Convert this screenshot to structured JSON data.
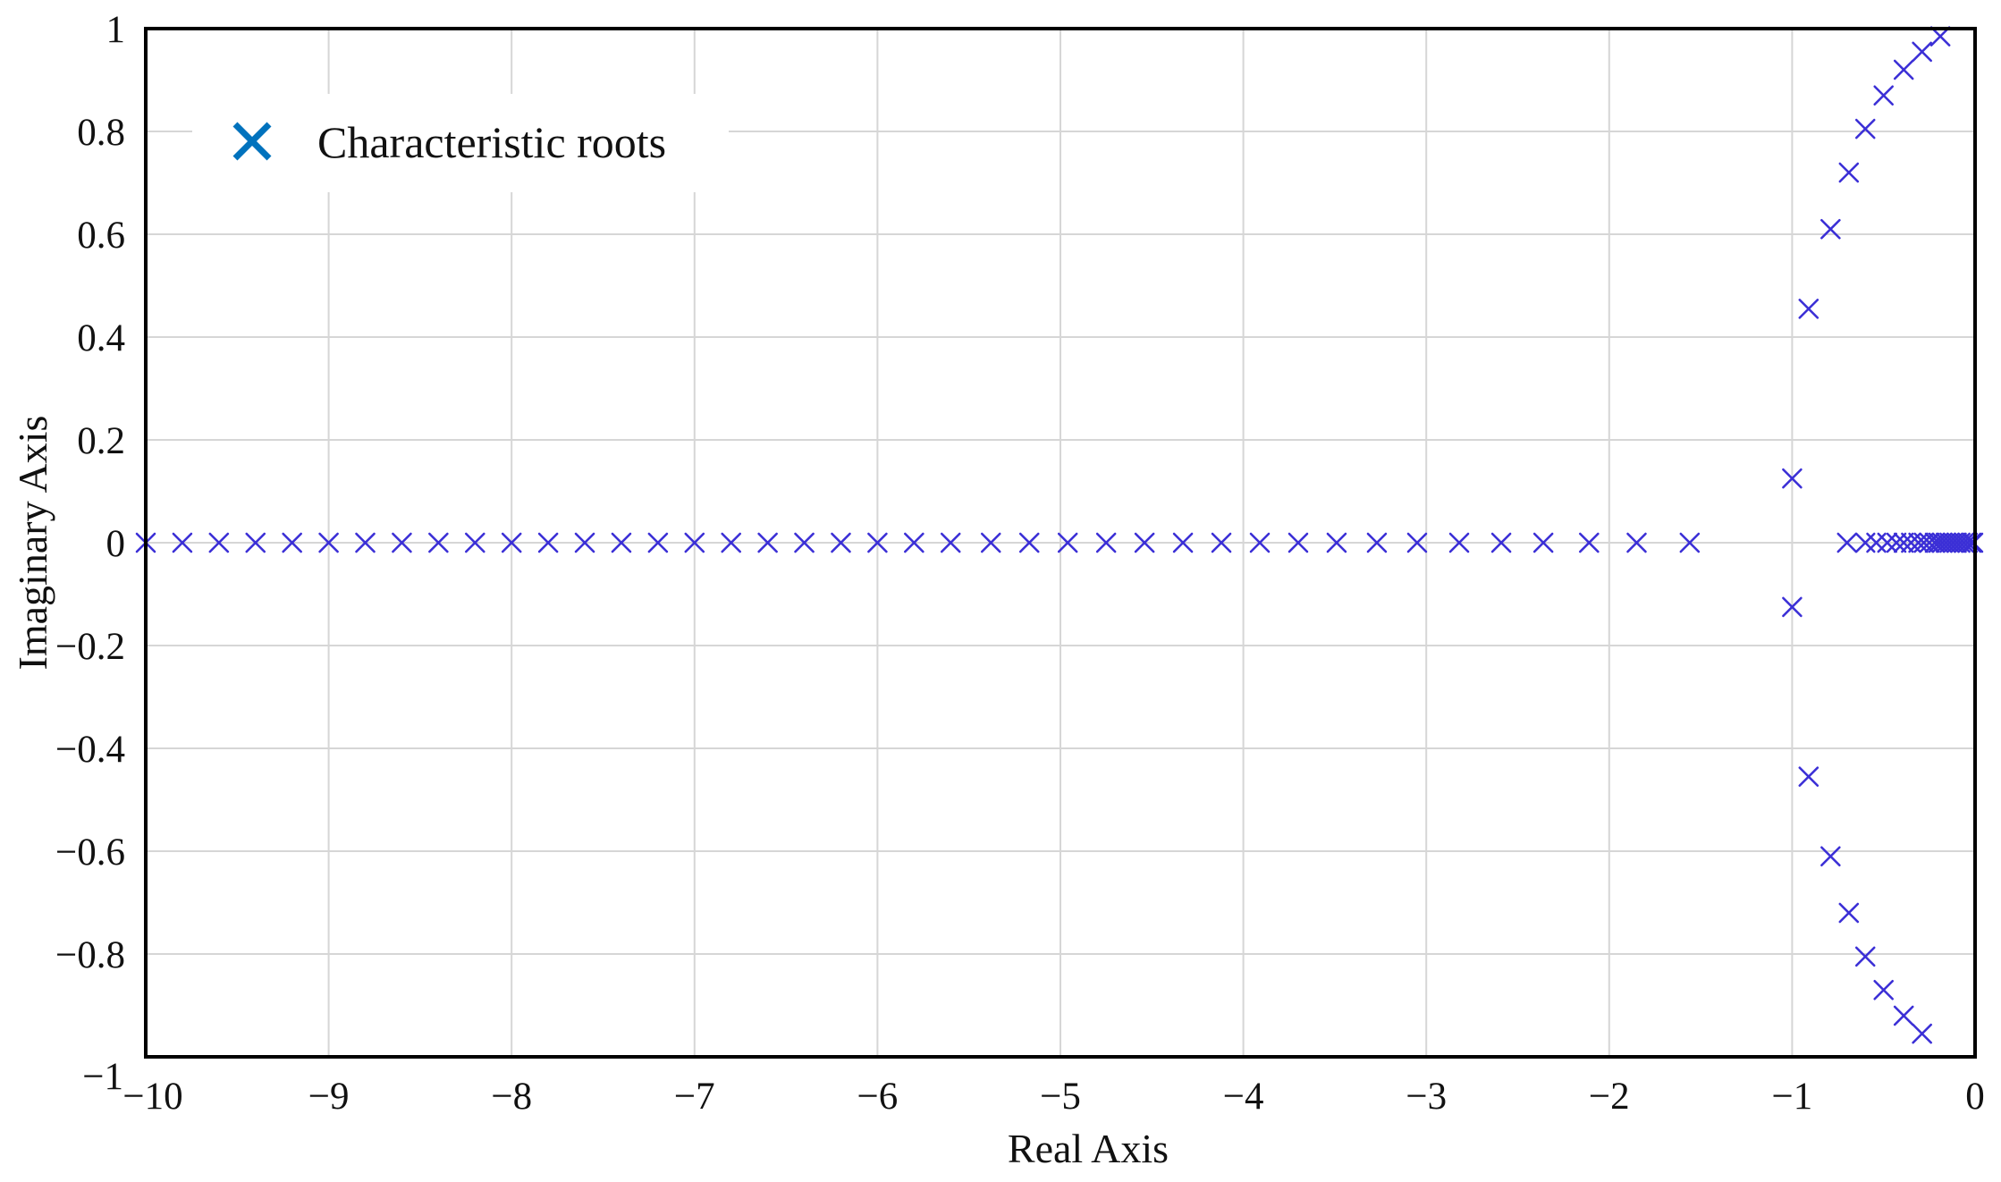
{
  "chart_data": {
    "type": "scatter",
    "xlabel": "Real Axis",
    "ylabel": "Imaginary Axis",
    "xlim": [
      -10,
      0
    ],
    "ylim": [
      -1,
      1
    ],
    "grid": true,
    "legend_position": "top-left",
    "x_ticks": [
      "−10",
      "−9",
      "−8",
      "−7",
      "−6",
      "−5",
      "−4",
      "−3",
      "−2",
      "−1",
      "0"
    ],
    "x_tick_values": [
      -10,
      -9,
      -8,
      -7,
      -6,
      -5,
      -4,
      -3,
      -2,
      -1,
      0
    ],
    "y_ticks": [
      "1",
      "0.8",
      "0.6",
      "0.4",
      "0.2",
      "0",
      "−0.2",
      "−0.4",
      "−0.6",
      "−0.8",
      "−1"
    ],
    "y_tick_values": [
      1,
      0.8,
      0.6,
      0.4,
      0.2,
      0,
      -0.2,
      -0.4,
      -0.6,
      -0.8,
      -1
    ],
    "legend_marker_color": "#0072bd",
    "series": [
      {
        "name": "Characteristic roots",
        "marker": "x",
        "color": "#3b2fd6",
        "points": [
          [
            -10.0,
            0
          ],
          [
            -9.8,
            0
          ],
          [
            -9.6,
            0
          ],
          [
            -9.4,
            0
          ],
          [
            -9.2,
            0
          ],
          [
            -9.0,
            0
          ],
          [
            -8.8,
            0
          ],
          [
            -8.6,
            0
          ],
          [
            -8.4,
            0
          ],
          [
            -8.2,
            0
          ],
          [
            -8.0,
            0
          ],
          [
            -7.8,
            0
          ],
          [
            -7.6,
            0
          ],
          [
            -7.4,
            0
          ],
          [
            -7.2,
            0
          ],
          [
            -7.0,
            0
          ],
          [
            -6.8,
            0
          ],
          [
            -6.6,
            0
          ],
          [
            -6.4,
            0
          ],
          [
            -6.2,
            0
          ],
          [
            -6.0,
            0
          ],
          [
            -5.8,
            0
          ],
          [
            -5.6,
            0
          ],
          [
            -5.38,
            0
          ],
          [
            -5.17,
            0
          ],
          [
            -4.96,
            0
          ],
          [
            -4.75,
            0
          ],
          [
            -4.54,
            0
          ],
          [
            -4.33,
            0
          ],
          [
            -4.12,
            0
          ],
          [
            -3.91,
            0
          ],
          [
            -3.7,
            0
          ],
          [
            -3.49,
            0
          ],
          [
            -3.27,
            0
          ],
          [
            -3.05,
            0
          ],
          [
            -2.82,
            0
          ],
          [
            -2.59,
            0
          ],
          [
            -2.36,
            0
          ],
          [
            -2.11,
            0
          ],
          [
            -1.85,
            0
          ],
          [
            -1.56,
            0
          ],
          [
            -1.0,
            0.125
          ],
          [
            -1.0,
            -0.125
          ],
          [
            -0.91,
            0.455
          ],
          [
            -0.91,
            -0.455
          ],
          [
            -0.79,
            0.61
          ],
          [
            -0.79,
            -0.61
          ],
          [
            -0.69,
            0.72
          ],
          [
            -0.69,
            -0.72
          ],
          [
            -0.6,
            0.805
          ],
          [
            -0.6,
            -0.805
          ],
          [
            -0.5,
            0.87
          ],
          [
            -0.5,
            -0.87
          ],
          [
            -0.39,
            0.92
          ],
          [
            -0.39,
            -0.92
          ],
          [
            -0.29,
            0.955
          ],
          [
            -0.29,
            -0.955
          ],
          [
            -0.19,
            0.985
          ],
          [
            -0.7,
            0
          ],
          [
            -0.6,
            0
          ],
          [
            -0.54,
            0
          ],
          [
            -0.48,
            0
          ],
          [
            -0.43,
            0
          ],
          [
            -0.39,
            0
          ],
          [
            -0.35,
            0
          ],
          [
            -0.31,
            0
          ],
          [
            -0.28,
            0
          ],
          [
            -0.25,
            0
          ],
          [
            -0.22,
            0
          ],
          [
            -0.2,
            0
          ],
          [
            -0.18,
            0
          ],
          [
            -0.16,
            0
          ],
          [
            -0.14,
            0
          ],
          [
            -0.12,
            0
          ],
          [
            -0.1,
            0
          ],
          [
            -0.08,
            0
          ],
          [
            -0.06,
            0
          ],
          [
            -0.04,
            0
          ],
          [
            -0.02,
            0
          ],
          [
            -0.01,
            0
          ]
        ]
      }
    ]
  }
}
